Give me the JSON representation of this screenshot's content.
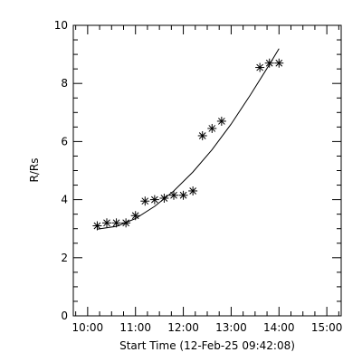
{
  "chart_data": {
    "type": "scatter",
    "title": "",
    "xlabel": "Start Time (12-Feb-25 09:42:08)",
    "ylabel": "R/Rs",
    "x_ticks": [
      "10:00",
      "11:00",
      "12:00",
      "13:00",
      "14:00",
      "15:00"
    ],
    "y_ticks": [
      "0",
      "2",
      "4",
      "6",
      "8",
      "10"
    ],
    "xlim": [
      "09:42",
      "15:18"
    ],
    "ylim": [
      0,
      10
    ],
    "grid": false,
    "marker": "asterisk",
    "points": [
      {
        "x": "10:12",
        "y": 3.1
      },
      {
        "x": "10:24",
        "y": 3.2
      },
      {
        "x": "10:36",
        "y": 3.2
      },
      {
        "x": "10:48",
        "y": 3.2
      },
      {
        "x": "11:00",
        "y": 3.45
      },
      {
        "x": "11:12",
        "y": 3.95
      },
      {
        "x": "11:24",
        "y": 4.0
      },
      {
        "x": "11:36",
        "y": 4.05
      },
      {
        "x": "11:48",
        "y": 4.15
      },
      {
        "x": "12:00",
        "y": 4.15
      },
      {
        "x": "12:12",
        "y": 4.3
      },
      {
        "x": "12:24",
        "y": 6.2
      },
      {
        "x": "12:36",
        "y": 6.45
      },
      {
        "x": "12:48",
        "y": 6.7
      },
      {
        "x": "13:36",
        "y": 8.55
      },
      {
        "x": "13:48",
        "y": 8.7
      },
      {
        "x": "14:00",
        "y": 8.7
      }
    ],
    "fit": {
      "type": "curve",
      "points": [
        {
          "x": "10:12",
          "y": 2.98
        },
        {
          "x": "10:36",
          "y": 3.08
        },
        {
          "x": "11:00",
          "y": 3.35
        },
        {
          "x": "11:24",
          "y": 3.77
        },
        {
          "x": "11:48",
          "y": 4.3
        },
        {
          "x": "12:12",
          "y": 4.95
        },
        {
          "x": "12:36",
          "y": 5.72
        },
        {
          "x": "13:00",
          "y": 6.6
        },
        {
          "x": "13:24",
          "y": 7.6
        },
        {
          "x": "13:48",
          "y": 8.65
        },
        {
          "x": "14:00",
          "y": 9.2
        }
      ]
    }
  }
}
